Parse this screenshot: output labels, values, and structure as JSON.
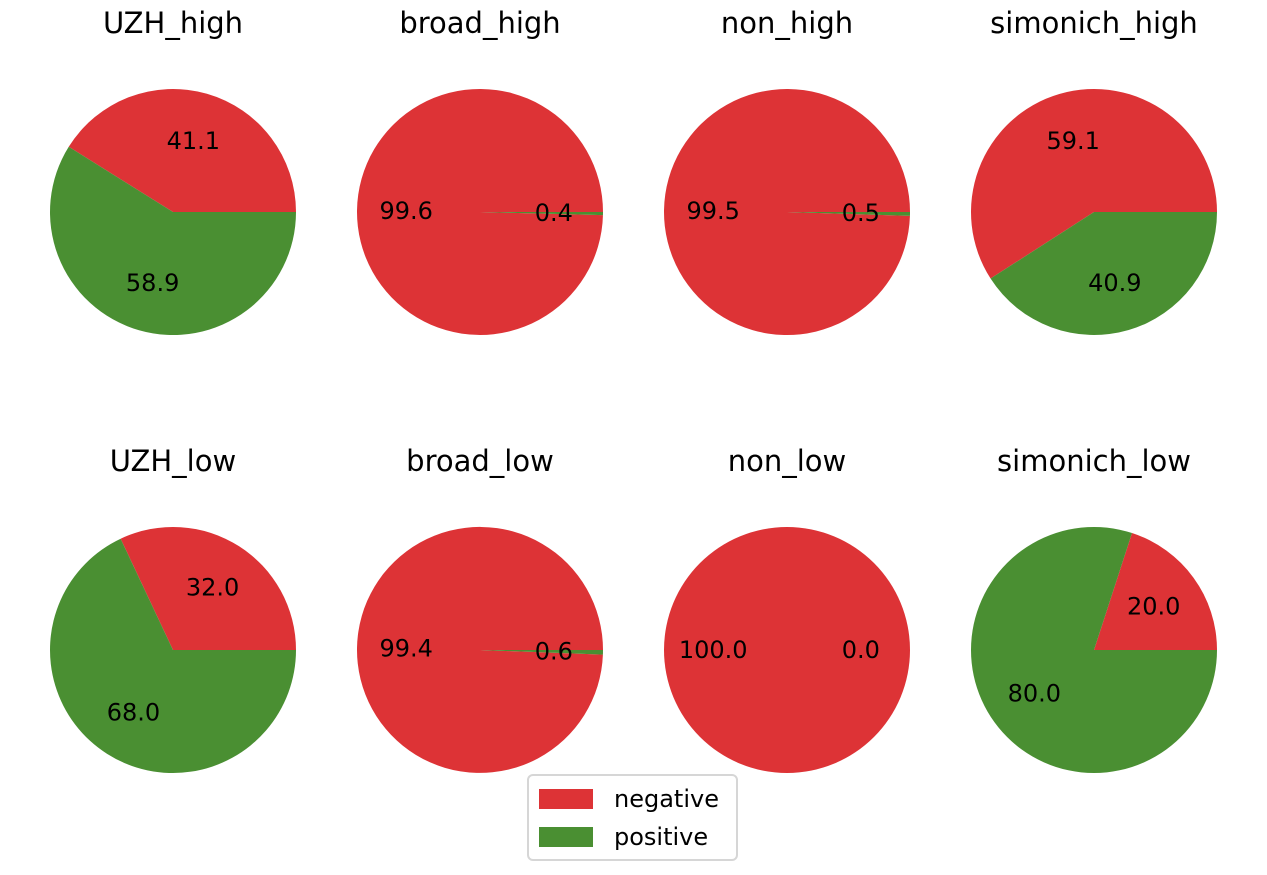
{
  "colors": {
    "negative": "#dd3336",
    "positive": "#4a8f32"
  },
  "legend": {
    "placement": "bottom-center",
    "entries": [
      {
        "name": "negative",
        "color": "#dd3336"
      },
      {
        "name": "positive",
        "color": "#4a8f32"
      }
    ]
  },
  "chart_data": [
    {
      "type": "pie",
      "title": "UZH_high",
      "labels": [
        "negative",
        "positive"
      ],
      "values": [
        41.1,
        58.9
      ],
      "value_labels": [
        "41.1",
        "58.9"
      ]
    },
    {
      "type": "pie",
      "title": "broad_high",
      "labels": [
        "negative",
        "positive"
      ],
      "values": [
        99.6,
        0.4
      ],
      "value_labels": [
        "99.6",
        "0.4"
      ]
    },
    {
      "type": "pie",
      "title": "non_high",
      "labels": [
        "negative",
        "positive"
      ],
      "values": [
        99.5,
        0.5
      ],
      "value_labels": [
        "99.5",
        "0.5"
      ]
    },
    {
      "type": "pie",
      "title": "simonich_high",
      "labels": [
        "negative",
        "positive"
      ],
      "values": [
        59.1,
        40.9
      ],
      "value_labels": [
        "59.1",
        "40.9"
      ]
    },
    {
      "type": "pie",
      "title": "UZH_low",
      "labels": [
        "negative",
        "positive"
      ],
      "values": [
        32.0,
        68.0
      ],
      "value_labels": [
        "32.0",
        "68.0"
      ]
    },
    {
      "type": "pie",
      "title": "broad_low",
      "labels": [
        "negative",
        "positive"
      ],
      "values": [
        99.4,
        0.6
      ],
      "value_labels": [
        "99.4",
        "0.6"
      ]
    },
    {
      "type": "pie",
      "title": "non_low",
      "labels": [
        "negative",
        "positive"
      ],
      "values": [
        100.0,
        0.0
      ],
      "value_labels": [
        "100.0",
        "0.0"
      ]
    },
    {
      "type": "pie",
      "title": "simonich_low",
      "labels": [
        "negative",
        "positive"
      ],
      "values": [
        20.0,
        80.0
      ],
      "value_labels": [
        "20.0",
        "80.0"
      ]
    }
  ]
}
